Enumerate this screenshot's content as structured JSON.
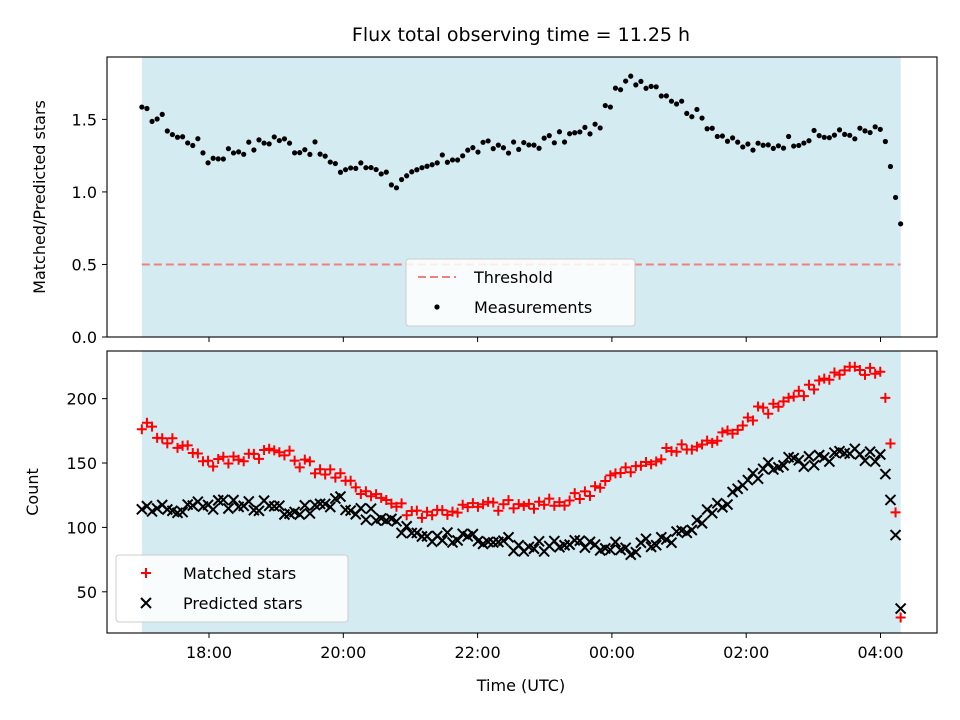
{
  "chart_data": {
    "title": "Flux total observing time = 11.25 h",
    "xlabel": "Time (UTC)",
    "x_ticks": [
      "18:00",
      "20:00",
      "22:00",
      "00:00",
      "02:00",
      "04:00"
    ],
    "panels": [
      {
        "type": "scatter",
        "ylabel": "Matched/Predicted stars",
        "ylim": [
          0,
          1.93
        ],
        "y_ticks": [
          "0.0",
          "0.5",
          "1.0",
          "1.5"
        ],
        "y_tick_values": [
          0,
          0.5,
          1.0,
          1.5
        ],
        "threshold": {
          "name": "Threshold",
          "value": 0.5,
          "color": "#f08080"
        },
        "legend": [
          "Threshold",
          "Measurements"
        ],
        "legend_position": "lower-center",
        "series": [
          {
            "name": "Measurements",
            "color": "#000000",
            "marker": "dot",
            "keyframes": [
              [
                17.0,
                1.55
              ],
              [
                17.3,
                1.5
              ],
              [
                17.5,
                1.38
              ],
              [
                17.8,
                1.35
              ],
              [
                18.0,
                1.22
              ],
              [
                18.3,
                1.28
              ],
              [
                18.7,
                1.32
              ],
              [
                19.0,
                1.38
              ],
              [
                19.3,
                1.3
              ],
              [
                19.6,
                1.3
              ],
              [
                19.9,
                1.15
              ],
              [
                20.1,
                1.17
              ],
              [
                20.5,
                1.18
              ],
              [
                20.8,
                1.05
              ],
              [
                21.1,
                1.12
              ],
              [
                21.4,
                1.2
              ],
              [
                21.7,
                1.25
              ],
              [
                22.0,
                1.3
              ],
              [
                22.3,
                1.32
              ],
              [
                22.6,
                1.3
              ],
              [
                23.0,
                1.35
              ],
              [
                23.5,
                1.4
              ],
              [
                23.8,
                1.45
              ],
              [
                24.0,
                1.65
              ],
              [
                24.3,
                1.78
              ],
              [
                24.6,
                1.75
              ],
              [
                24.9,
                1.65
              ],
              [
                25.2,
                1.55
              ],
              [
                25.5,
                1.45
              ],
              [
                25.8,
                1.33
              ],
              [
                26.2,
                1.3
              ],
              [
                26.6,
                1.35
              ],
              [
                27.0,
                1.38
              ],
              [
                27.5,
                1.4
              ],
              [
                28.0,
                1.42
              ],
              [
                28.1,
                1.32
              ],
              [
                28.2,
                1.02
              ],
              [
                28.3,
                0.78
              ]
            ]
          }
        ]
      },
      {
        "type": "scatter",
        "ylabel": "Count",
        "ylim": [
          18,
          237
        ],
        "y_ticks": [
          "50",
          "100",
          "150",
          "200"
        ],
        "y_tick_values": [
          50,
          100,
          150,
          200
        ],
        "legend": [
          "Matched stars",
          "Predicted stars"
        ],
        "legend_position": "lower-left",
        "series": [
          {
            "name": "Matched stars",
            "color": "#ff0000",
            "marker": "plus",
            "keyframes": [
              [
                17.0,
                180
              ],
              [
                17.3,
                172
              ],
              [
                17.5,
                165
              ],
              [
                17.8,
                160
              ],
              [
                18.0,
                150
              ],
              [
                18.3,
                152
              ],
              [
                18.6,
                157
              ],
              [
                19.0,
                160
              ],
              [
                19.4,
                150
              ],
              [
                19.8,
                143
              ],
              [
                20.1,
                133
              ],
              [
                20.4,
                128
              ],
              [
                20.7,
                120
              ],
              [
                21.0,
                112
              ],
              [
                21.4,
                112
              ],
              [
                21.8,
                115
              ],
              [
                22.2,
                117
              ],
              [
                22.6,
                117
              ],
              [
                23.0,
                117
              ],
              [
                23.4,
                122
              ],
              [
                23.7,
                130
              ],
              [
                24.0,
                140
              ],
              [
                24.5,
                148
              ],
              [
                24.9,
                160
              ],
              [
                25.3,
                163
              ],
              [
                25.7,
                172
              ],
              [
                26.0,
                185
              ],
              [
                26.4,
                195
              ],
              [
                26.8,
                205
              ],
              [
                27.2,
                215
              ],
              [
                27.6,
                222
              ],
              [
                27.9,
                220
              ],
              [
                28.0,
                222
              ],
              [
                28.05,
                215
              ],
              [
                28.1,
                183
              ],
              [
                28.2,
                146
              ],
              [
                28.25,
                75
              ],
              [
                28.3,
                30
              ]
            ]
          },
          {
            "name": "Predicted stars",
            "color": "#000000",
            "marker": "x",
            "keyframes": [
              [
                17.0,
                115
              ],
              [
                17.5,
                113
              ],
              [
                17.8,
                120
              ],
              [
                18.2,
                117
              ],
              [
                18.7,
                117
              ],
              [
                19.0,
                115
              ],
              [
                19.3,
                110
              ],
              [
                19.6,
                118
              ],
              [
                19.9,
                122
              ],
              [
                20.1,
                112
              ],
              [
                20.5,
                110
              ],
              [
                20.7,
                110
              ],
              [
                20.9,
                97
              ],
              [
                21.2,
                92
              ],
              [
                21.5,
                95
              ],
              [
                21.8,
                90
              ],
              [
                22.2,
                92
              ],
              [
                22.5,
                87
              ],
              [
                22.8,
                85
              ],
              [
                23.2,
                85
              ],
              [
                23.6,
                88
              ],
              [
                24.0,
                84
              ],
              [
                24.3,
                83
              ],
              [
                24.6,
                90
              ],
              [
                25.0,
                92
              ],
              [
                25.4,
                110
              ],
              [
                25.8,
                125
              ],
              [
                26.1,
                140
              ],
              [
                26.4,
                150
              ],
              [
                26.9,
                152
              ],
              [
                27.2,
                152
              ],
              [
                27.6,
                158
              ],
              [
                27.9,
                155
              ],
              [
                28.05,
                150
              ],
              [
                28.1,
                131
              ],
              [
                28.2,
                111
              ],
              [
                28.25,
                76
              ],
              [
                28.3,
                37
              ]
            ]
          }
        ]
      }
    ],
    "shaded_region": {
      "from": 17.0,
      "to": 28.3,
      "color": "#add8e6"
    }
  }
}
